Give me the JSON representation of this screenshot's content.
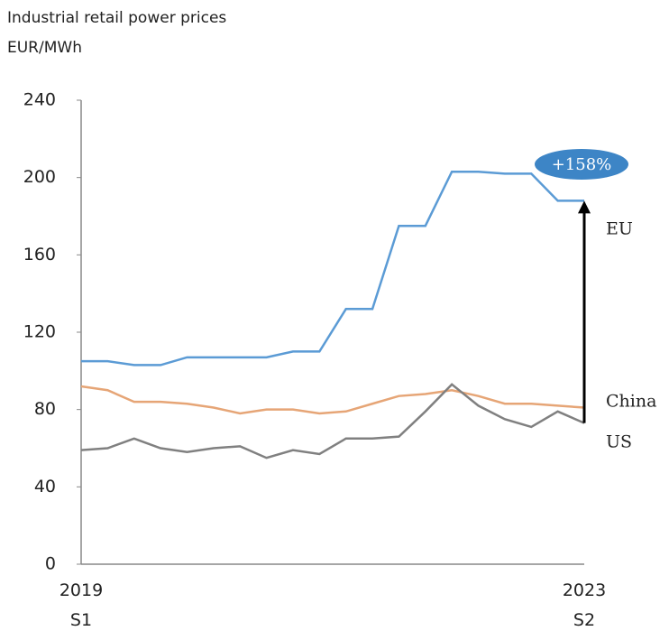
{
  "chart_data": {
    "type": "line",
    "title": "Industrial retail power prices",
    "subtitle": "EUR/MWh",
    "categories": [
      "2019\nS1",
      null,
      null,
      null,
      null,
      null,
      null,
      null,
      null,
      null,
      null,
      null,
      null,
      null,
      null,
      null,
      null,
      null,
      null,
      "2023\nS2"
    ],
    "series": [
      {
        "name": "EU",
        "color": "#5b9bd5",
        "values": [
          105,
          105,
          103,
          103,
          107,
          107,
          107,
          107,
          110,
          110,
          132,
          132,
          175,
          175,
          203,
          203,
          202,
          202,
          188,
          188
        ]
      },
      {
        "name": "China",
        "color": "#e6a576",
        "values": [
          92,
          90,
          84,
          84,
          83,
          81,
          78,
          80,
          80,
          78,
          79,
          83,
          87,
          88,
          90,
          87,
          83,
          83,
          82,
          81
        ]
      },
      {
        "name": "US",
        "color": "#808080",
        "values": [
          59,
          60,
          65,
          60,
          58,
          60,
          61,
          55,
          59,
          57,
          65,
          65,
          66,
          79,
          93,
          82,
          75,
          71,
          79,
          73
        ]
      }
    ],
    "annotation": "+158%",
    "ylim": [
      0,
      240
    ],
    "yticks": [
      0,
      40,
      80,
      120,
      160,
      200,
      240
    ],
    "grid": false
  }
}
